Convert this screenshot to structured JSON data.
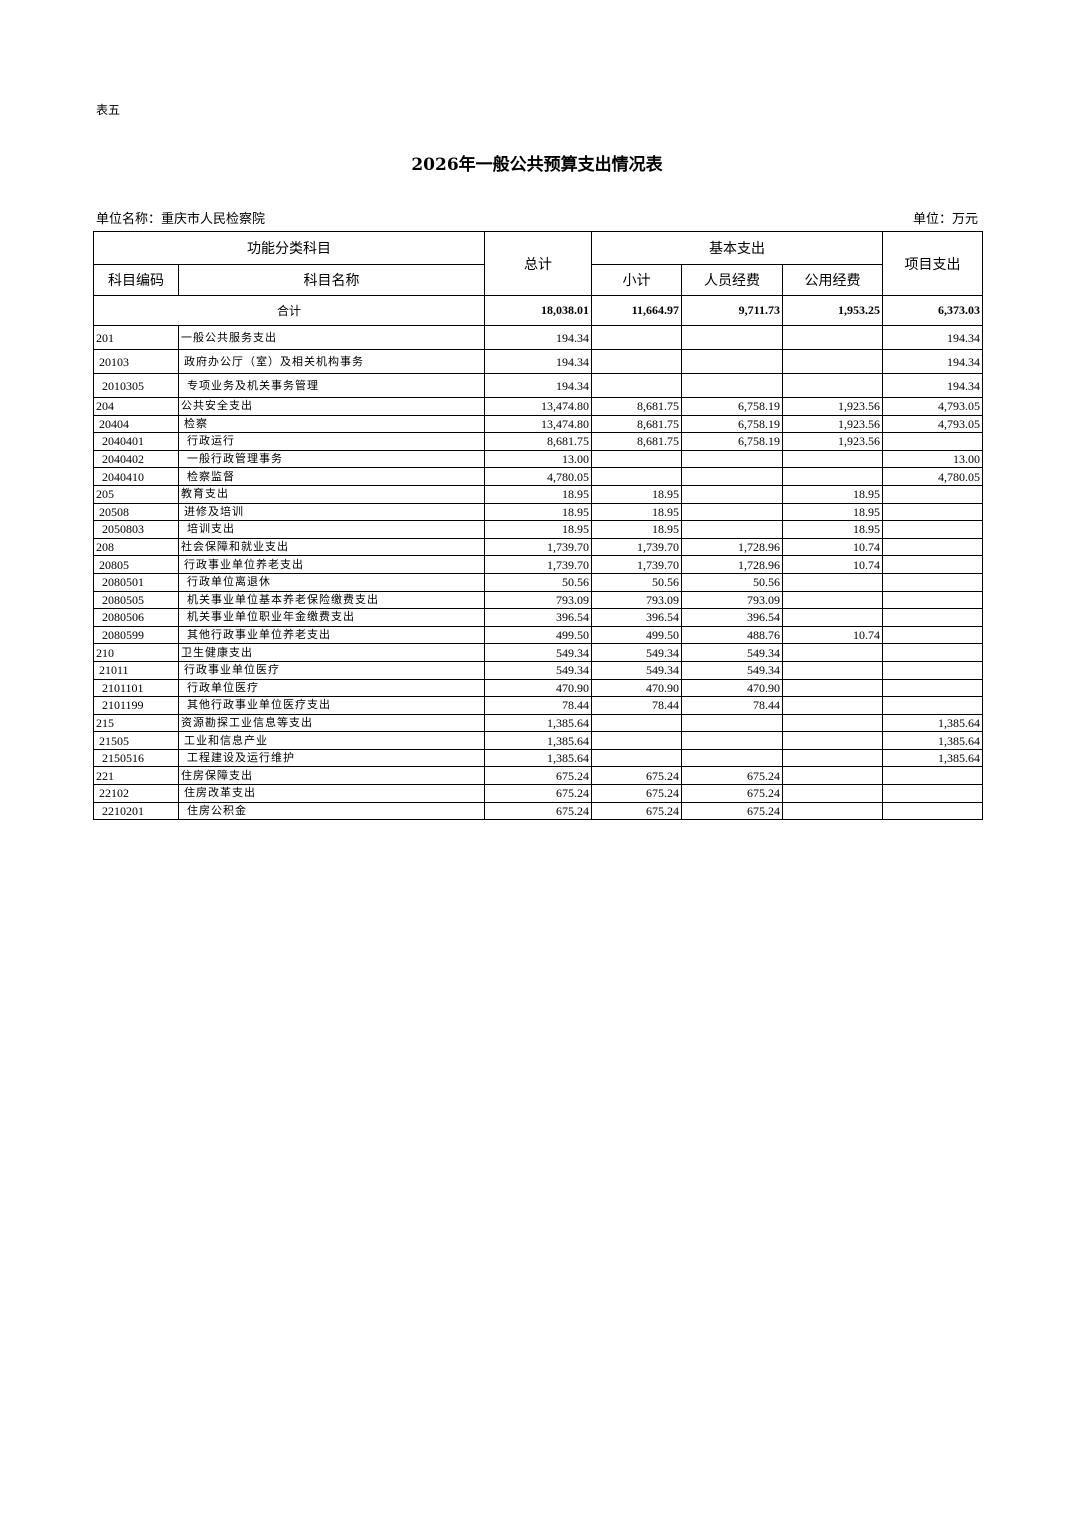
{
  "doc_label": "表五",
  "title": "2026年一般公共预算支出情况表",
  "unit_name": "单位名称：重庆市人民检察院",
  "unit": "单位：万元",
  "headers": {
    "functional": "功能分类科目",
    "total": "总计",
    "basic": "基本支出",
    "project": "项目支出",
    "code": "科目编码",
    "name": "科目名称",
    "subtotal": "小计",
    "personnel": "人员经费",
    "public": "公用经费"
  },
  "total_row": {
    "label": "合计",
    "total": "18,038.01",
    "subtotal": "11,664.97",
    "personnel": "9,711.73",
    "public": "1,953.25",
    "project": "6,373.03"
  },
  "rows": [
    [
      "201",
      "一般公共服务支出",
      "194.34",
      "",
      "",
      "",
      "194.34"
    ],
    [
      "20103",
      "政府办公厅（室）及相关机构事务",
      "194.34",
      "",
      "",
      "",
      "194.34"
    ],
    [
      "2010305",
      "专项业务及机关事务管理",
      "194.34",
      "",
      "",
      "",
      "194.34"
    ],
    [
      "204",
      "公共安全支出",
      "13,474.80",
      "8,681.75",
      "6,758.19",
      "1,923.56",
      "4,793.05"
    ],
    [
      "20404",
      "检察",
      "13,474.80",
      "8,681.75",
      "6,758.19",
      "1,923.56",
      "4,793.05"
    ],
    [
      "2040401",
      "行政运行",
      "8,681.75",
      "8,681.75",
      "6,758.19",
      "1,923.56",
      ""
    ],
    [
      "2040402",
      "一般行政管理事务",
      "13.00",
      "",
      "",
      "",
      "13.00"
    ],
    [
      "2040410",
      "检察监督",
      "4,780.05",
      "",
      "",
      "",
      "4,780.05"
    ],
    [
      "205",
      "教育支出",
      "18.95",
      "18.95",
      "",
      "18.95",
      ""
    ],
    [
      "20508",
      "进修及培训",
      "18.95",
      "18.95",
      "",
      "18.95",
      ""
    ],
    [
      "2050803",
      "培训支出",
      "18.95",
      "18.95",
      "",
      "18.95",
      ""
    ],
    [
      "208",
      "社会保障和就业支出",
      "1,739.70",
      "1,739.70",
      "1,728.96",
      "10.74",
      ""
    ],
    [
      "20805",
      "行政事业单位养老支出",
      "1,739.70",
      "1,739.70",
      "1,728.96",
      "10.74",
      ""
    ],
    [
      "2080501",
      "行政单位离退休",
      "50.56",
      "50.56",
      "50.56",
      "",
      ""
    ],
    [
      "2080505",
      "机关事业单位基本养老保险缴费支出",
      "793.09",
      "793.09",
      "793.09",
      "",
      ""
    ],
    [
      "2080506",
      "机关事业单位职业年金缴费支出",
      "396.54",
      "396.54",
      "396.54",
      "",
      ""
    ],
    [
      "2080599",
      "其他行政事业单位养老支出",
      "499.50",
      "499.50",
      "488.76",
      "10.74",
      ""
    ],
    [
      "210",
      "卫生健康支出",
      "549.34",
      "549.34",
      "549.34",
      "",
      ""
    ],
    [
      "21011",
      "行政事业单位医疗",
      "549.34",
      "549.34",
      "549.34",
      "",
      ""
    ],
    [
      "2101101",
      "行政单位医疗",
      "470.90",
      "470.90",
      "470.90",
      "",
      ""
    ],
    [
      "2101199",
      "其他行政事业单位医疗支出",
      "78.44",
      "78.44",
      "78.44",
      "",
      ""
    ],
    [
      "215",
      "资源勘探工业信息等支出",
      "1,385.64",
      "",
      "",
      "",
      "1,385.64"
    ],
    [
      "21505",
      "工业和信息产业",
      "1,385.64",
      "",
      "",
      "",
      "1,385.64"
    ],
    [
      "2150516",
      "工程建设及运行维护",
      "1,385.64",
      "",
      "",
      "",
      "1,385.64"
    ],
    [
      "221",
      "住房保障支出",
      "675.24",
      "675.24",
      "675.24",
      "",
      ""
    ],
    [
      "22102",
      "住房改革支出",
      "675.24",
      "675.24",
      "675.24",
      "",
      ""
    ],
    [
      "2210201",
      "住房公积金",
      "675.24",
      "675.24",
      "675.24",
      "",
      ""
    ]
  ]
}
